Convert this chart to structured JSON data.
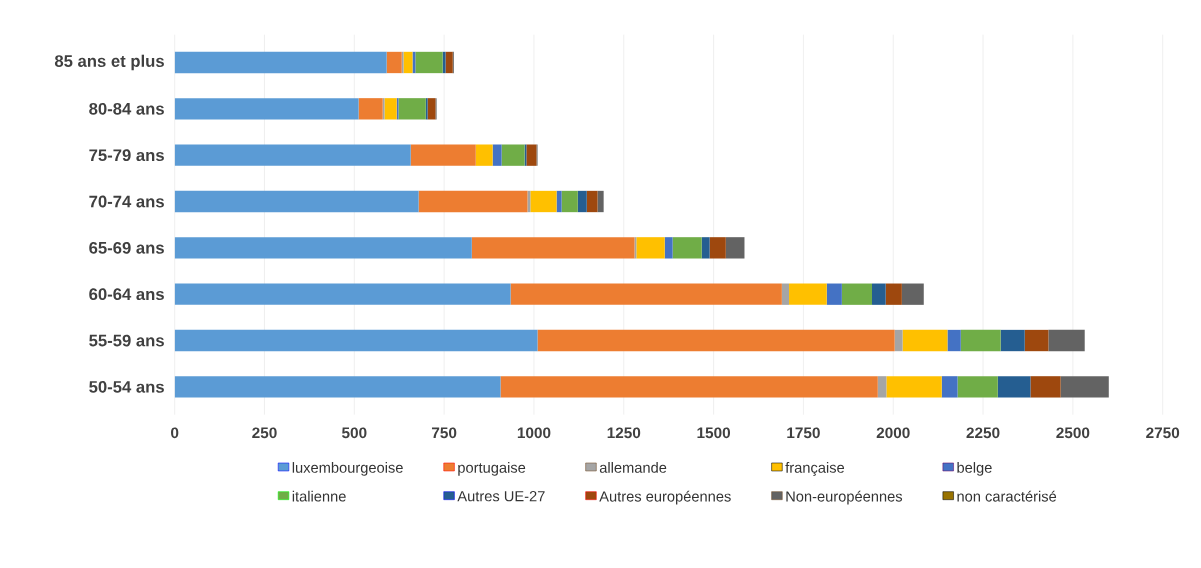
{
  "chart_data": {
    "type": "bar",
    "orientation": "horizontal",
    "stacked": true,
    "grid": "x",
    "legend": "bottom",
    "categories": [
      "85 ans et plus",
      "80-84 ans",
      "75-79 ans",
      "70-74 ans",
      "65-69 ans",
      "60-64 ans",
      "55-59 ans",
      "50-54 ans"
    ],
    "xlim": [
      0,
      2750
    ],
    "xticks": [
      0,
      250,
      500,
      750,
      1000,
      1250,
      1500,
      1750,
      2000,
      2250,
      2500,
      2750
    ],
    "series": [
      {
        "name": "luxembourgeoise",
        "color": "#5b9bd5",
        "values": [
          590,
          512,
          657,
          679,
          827,
          935,
          1010,
          907
        ]
      },
      {
        "name": "portugaise",
        "color": "#ed7d31",
        "values": [
          42,
          67,
          181,
          303,
          453,
          755,
          994,
          1050
        ]
      },
      {
        "name": "allemande",
        "color": "#a5a5a5",
        "values": [
          5,
          5,
          null,
          8,
          5,
          20,
          22,
          24
        ]
      },
      {
        "name": "française",
        "color": "#ffc000",
        "values": [
          25,
          34,
          47,
          73,
          79,
          105,
          125,
          154
        ]
      },
      {
        "name": "belge",
        "color": "#4472c4",
        "values": [
          8,
          5,
          25,
          14,
          22,
          42,
          37,
          44
        ]
      },
      {
        "name": "italienne",
        "color": "#70ad47",
        "values": [
          76,
          76,
          64,
          45,
          81,
          84,
          111,
          112
        ]
      },
      {
        "name": "Autres UE-27",
        "color": "#255e91",
        "values": [
          8,
          5,
          5,
          25,
          22,
          38,
          67,
          91
        ]
      },
      {
        "name": "Autres européennes",
        "color": "#9e480e",
        "values": [
          20,
          22,
          28,
          30,
          45,
          45,
          66,
          84
        ]
      },
      {
        "name": "Non-européennes",
        "color": "#636363",
        "values": [
          3,
          3,
          3,
          17,
          52,
          61,
          101,
          134
        ]
      },
      {
        "name": "non caractérisé",
        "color": "#997300",
        "values": [
          0,
          0,
          0,
          0,
          0,
          0,
          0,
          0
        ]
      }
    ]
  }
}
